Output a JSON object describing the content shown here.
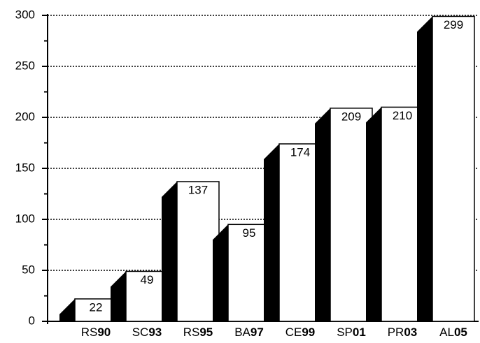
{
  "chart_data": {
    "type": "bar3d",
    "categories": [
      "RS90",
      "SC93",
      "RS95",
      "BA97",
      "CE99",
      "SP01",
      "PR03",
      "AL05"
    ],
    "values": [
      22,
      49,
      137,
      95,
      174,
      209,
      210,
      299
    ],
    "color": "#ffffff",
    "side_color": "#000000",
    "ylim": [
      0,
      300
    ],
    "yticks": [
      0,
      50,
      100,
      150,
      200,
      250,
      300
    ],
    "grid": true
  }
}
